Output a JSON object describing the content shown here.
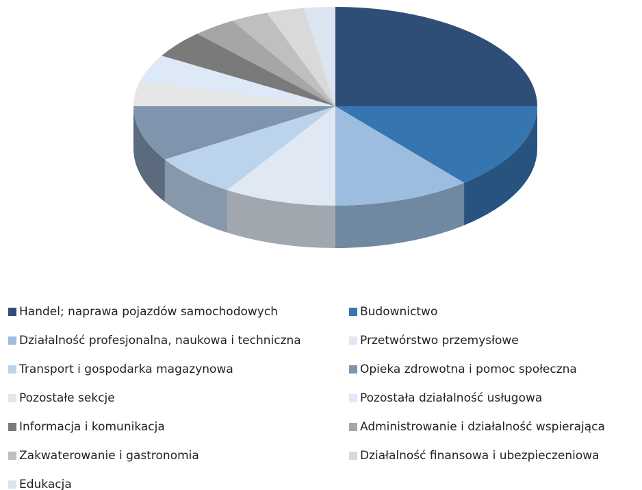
{
  "chart_data": {
    "type": "pie",
    "categories": [
      "Handel; naprawa pojazdów samochodowych",
      "Budownictwo",
      "Działalność profesjonalna, naukowa i techniczna",
      "Przetwórstwo przemysłowe",
      "Transport i gospodarka magazynowa",
      "Opieka zdrowotna i pomoc społeczna",
      "Pozostałe sekcje",
      "Pozostała działalność usługowa",
      "Informacja i komunikacja",
      "Administrowanie i działalność wspierająca",
      "Zakwaterowanie i gastronomia",
      "Działalność finansowa i ubezpieczeniowa",
      "Edukacja"
    ],
    "values": [
      25,
      14,
      11,
      9,
      7,
      9,
      4,
      4.5,
      4.5,
      3.5,
      3,
      3,
      2.5
    ],
    "colors": [
      "#2e4e78",
      "#3575b0",
      "#9dbde0",
      "#dfe8f3",
      "#bcd3ec",
      "#7e95ad",
      "#e6e6e6",
      "#dde9f6",
      "#7a7a7a",
      "#a6a6a6",
      "#bfbfbf",
      "#d9d9d9",
      "#dce4f2"
    ],
    "legend": "bottom"
  }
}
